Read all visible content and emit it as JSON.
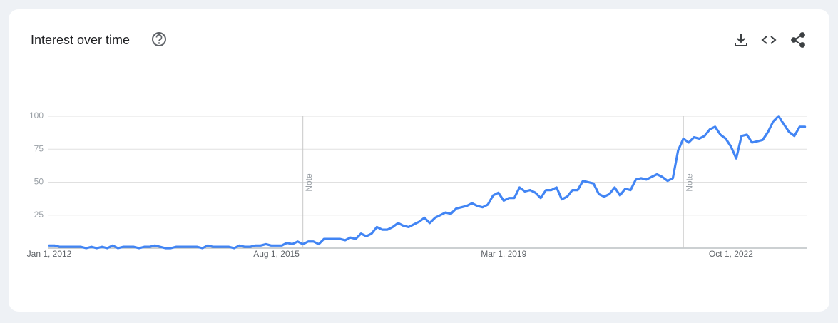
{
  "chart_data": {
    "type": "line",
    "title": "Interest over time",
    "categories": [
      "Jan 1, 2012",
      null,
      null,
      null,
      null,
      null,
      null,
      null,
      null,
      null,
      null,
      null,
      null,
      null,
      null,
      null,
      null,
      null,
      null,
      null,
      null,
      null,
      null,
      null,
      null,
      null,
      null,
      null,
      null,
      null,
      null,
      null,
      null,
      null,
      null,
      null,
      null,
      null,
      null,
      null,
      null,
      null,
      null,
      "Aug 1, 2015",
      null,
      null,
      null,
      null,
      null,
      null,
      null,
      null,
      null,
      null,
      null,
      null,
      null,
      null,
      null,
      null,
      null,
      null,
      null,
      null,
      null,
      null,
      null,
      null,
      null,
      null,
      null,
      null,
      null,
      null,
      null,
      null,
      null,
      null,
      null,
      null,
      null,
      null,
      null,
      null,
      null,
      null,
      "Mar 1, 2019",
      null,
      null,
      null,
      null,
      null,
      null,
      null,
      null,
      null,
      null,
      null,
      null,
      null,
      null,
      null,
      null,
      null,
      null,
      null,
      null,
      null,
      null,
      null,
      null,
      null,
      null,
      null,
      null,
      null,
      null,
      null,
      null,
      null,
      null,
      null,
      null,
      null,
      null,
      null,
      null,
      null,
      null,
      "Oct 1, 2022",
      null,
      null,
      null,
      null,
      null,
      null,
      null,
      null,
      null,
      null,
      null,
      null,
      null,
      null
    ],
    "series": [
      {
        "color": "#4285f4",
        "values": [
          2,
          2,
          1,
          1,
          1,
          1,
          1,
          0,
          1,
          0,
          1,
          0,
          2,
          0,
          1,
          1,
          1,
          0,
          1,
          1,
          2,
          1,
          0,
          0,
          1,
          1,
          1,
          1,
          1,
          0,
          2,
          1,
          1,
          1,
          1,
          0,
          2,
          1,
          1,
          2,
          2,
          3,
          2,
          2,
          2,
          4,
          3,
          5,
          3,
          5,
          5,
          3,
          7,
          7,
          7,
          7,
          6,
          8,
          7,
          11,
          9,
          11,
          16,
          14,
          14,
          16,
          19,
          17,
          16,
          18,
          20,
          23,
          19,
          23,
          25,
          27,
          26,
          30,
          31,
          32,
          34,
          32,
          31,
          33,
          40,
          42,
          36,
          38,
          38,
          46,
          43,
          44,
          42,
          38,
          44,
          44,
          46,
          37,
          39,
          44,
          44,
          51,
          50,
          49,
          41,
          39,
          41,
          46,
          40,
          45,
          44,
          52,
          53,
          52,
          54,
          56,
          54,
          51,
          53,
          74,
          83,
          80,
          84,
          83,
          85,
          90,
          92,
          86,
          83,
          77,
          68,
          85,
          86,
          80,
          81,
          82,
          88,
          96,
          100,
          94,
          88,
          85,
          92,
          92
        ]
      }
    ],
    "ylim": [
      0,
      100
    ],
    "yticks": [
      25,
      50,
      75,
      100
    ],
    "grid": true,
    "annotations": [
      {
        "text": "Note",
        "category_index": 48
      },
      {
        "text": "Note",
        "category_index": 120
      }
    ]
  }
}
